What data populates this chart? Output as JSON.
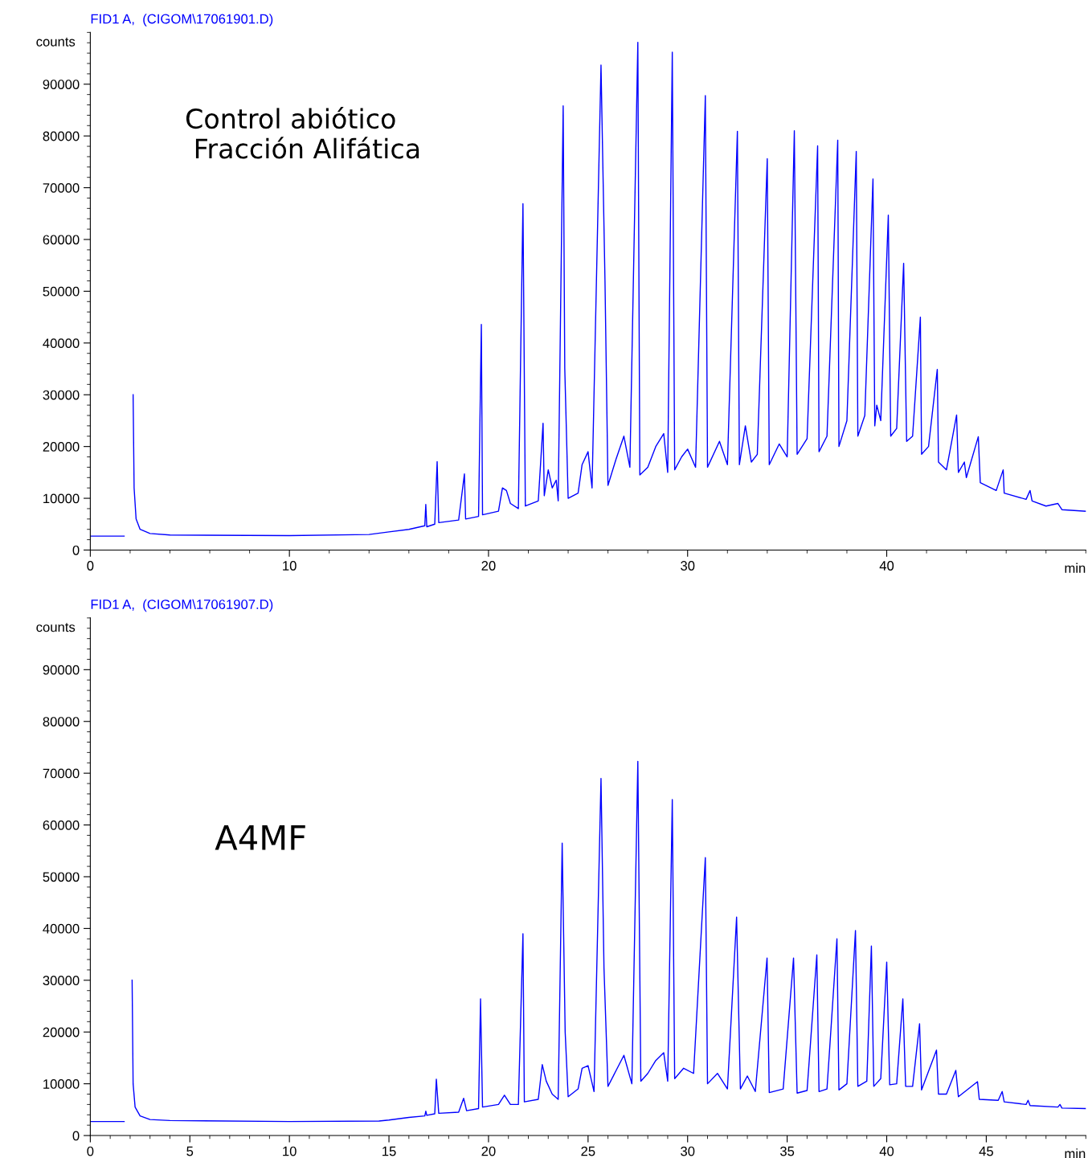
{
  "chart_data": [
    {
      "type": "line",
      "title": "FID1 A,  (CIGOM\\17061901.D)",
      "xlabel": "min",
      "ylabel": "counts",
      "annotations": [
        "Control abiótico\n Fracción Alifática"
      ],
      "xlim": [
        0,
        50
      ],
      "xticks": [
        0,
        10,
        20,
        30,
        40
      ],
      "ylim": [
        0,
        100000
      ],
      "yticks": [
        0,
        10000,
        20000,
        30000,
        40000,
        50000,
        60000,
        70000,
        80000,
        90000
      ],
      "grid": false,
      "legend": false,
      "marker": "none",
      "line_style": "solid",
      "series": [
        {
          "color": "#0000ff",
          "x": [
            0,
            1.7,
            1.72,
            2.1,
            2.15,
            2.2,
            2.3,
            2.5,
            3,
            4,
            10,
            14,
            15,
            16,
            16.8,
            16.85,
            16.9,
            17.3,
            17.42,
            17.5,
            18.5,
            18.79,
            18.85,
            19.5,
            19.64,
            19.7,
            20.5,
            20.7,
            20.9,
            21.1,
            21.5,
            21.73,
            21.85,
            22.5,
            22.74,
            22.8,
            23,
            23.2,
            23.4,
            23.5,
            23.75,
            23.83,
            24,
            24.5,
            24.7,
            25,
            25.2,
            25.65,
            25.85,
            26,
            26.4,
            26.8,
            27.1,
            27.5,
            27.6,
            28,
            28.4,
            28.8,
            29,
            29.23,
            29.35,
            29.7,
            30,
            30.4,
            30.89,
            31,
            31.6,
            32,
            32.5,
            32.6,
            32.9,
            33.2,
            33.5,
            34,
            34.1,
            34.6,
            35,
            35.36,
            35.5,
            36,
            36.53,
            36.6,
            37,
            37.54,
            37.6,
            38,
            38.47,
            38.55,
            38.9,
            39.31,
            39.4,
            39.5,
            39.7,
            40.08,
            40.2,
            40.5,
            40.85,
            41,
            41.3,
            41.69,
            41.75,
            42.1,
            42.54,
            42.6,
            43,
            43.51,
            43.6,
            43.9,
            44,
            44.6,
            44.7,
            45.5,
            45.85,
            45.9,
            47,
            47.2,
            47.3,
            48,
            48.6,
            48.8,
            50
          ],
          "values": [
            2700,
            2700,
            null,
            null,
            30000,
            12000,
            6000,
            4000,
            3200,
            2900,
            2800,
            3000,
            3500,
            4000,
            4700,
            8800,
            4500,
            5000,
            17100,
            5300,
            5800,
            14700,
            6000,
            6500,
            43600,
            6800,
            7500,
            12000,
            11500,
            9000,
            8000,
            66900,
            8500,
            9500,
            24500,
            10500,
            15500,
            12000,
            13500,
            9500,
            85800,
            35100,
            10000,
            11000,
            16500,
            19000,
            12000,
            93700,
            52000,
            12500,
            17500,
            22000,
            16000,
            98100,
            14500,
            16000,
            20000,
            22500,
            15000,
            96200,
            15500,
            18000,
            19500,
            16000,
            87800,
            16000,
            21000,
            16500,
            80900,
            16500,
            24000,
            17000,
            18500,
            75600,
            16500,
            20500,
            18000,
            81000,
            18500,
            21500,
            78100,
            19000,
            22000,
            79200,
            20000,
            25000,
            77000,
            22000,
            26000,
            71700,
            24000,
            28000,
            25000,
            64700,
            22000,
            23500,
            55400,
            21000,
            22000,
            45000,
            18500,
            20000,
            34900,
            17000,
            15500,
            26100,
            15000,
            17000,
            14000,
            21900,
            13000,
            11500,
            15500,
            11000,
            9800,
            11500,
            9500,
            8500,
            9000,
            7800,
            7500
          ]
        }
      ]
    },
    {
      "type": "line",
      "title": "FID1 A,  (CIGOM\\17061907.D)",
      "xlabel": "min",
      "ylabel": "counts",
      "annotations": [
        "A4MF"
      ],
      "xlim": [
        0,
        50
      ],
      "xticks": [
        0,
        5,
        10,
        15,
        20,
        25,
        30,
        35,
        40,
        45
      ],
      "ylim": [
        0,
        100000
      ],
      "yticks": [
        0,
        10000,
        20000,
        30000,
        40000,
        50000,
        60000,
        70000,
        80000,
        90000
      ],
      "grid": false,
      "legend": false,
      "marker": "none",
      "line_style": "solid",
      "series": [
        {
          "color": "#0000ff",
          "x": [
            0,
            1.7,
            1.72,
            2.05,
            2.1,
            2.15,
            2.25,
            2.5,
            3,
            4,
            10,
            14.5,
            15,
            16,
            16.8,
            16.85,
            16.9,
            17.3,
            17.38,
            17.5,
            18.5,
            18.75,
            18.9,
            19.5,
            19.6,
            19.7,
            20.5,
            20.8,
            21.1,
            21.5,
            21.73,
            21.8,
            22.5,
            22.7,
            22.9,
            23.2,
            23.5,
            23.7,
            23.85,
            24,
            24.5,
            24.7,
            25,
            25.3,
            25.65,
            25.8,
            26,
            26.4,
            26.8,
            27.2,
            27.5,
            27.65,
            28,
            28.4,
            28.8,
            29,
            29.23,
            29.35,
            29.8,
            30.3,
            30.89,
            31,
            31.5,
            32,
            32.46,
            32.65,
            33,
            33.4,
            33.99,
            34.1,
            34.8,
            35.32,
            35.5,
            36,
            36.49,
            36.6,
            37,
            37.5,
            37.6,
            38,
            38.43,
            38.55,
            39,
            39.23,
            39.35,
            39.7,
            40,
            40.15,
            40.5,
            40.81,
            40.95,
            41.3,
            41.65,
            41.75,
            42.5,
            42.6,
            43,
            43.47,
            43.6,
            44.56,
            44.65,
            45.6,
            45.8,
            45.9,
            47,
            47.1,
            47.2,
            48.6,
            48.7,
            48.8,
            50
          ],
          "values": [
            2700,
            2700,
            null,
            null,
            30000,
            10000,
            5500,
            3800,
            3100,
            2900,
            2700,
            2800,
            3000,
            3500,
            3800,
            4700,
            3900,
            4200,
            10900,
            4300,
            4500,
            7200,
            4800,
            5200,
            26400,
            5500,
            6000,
            7800,
            6000,
            6000,
            39000,
            6500,
            7000,
            13700,
            10500,
            8000,
            7000,
            56500,
            20000,
            7500,
            9000,
            13000,
            13500,
            8500,
            69000,
            32300,
            9500,
            12500,
            15500,
            10000,
            72300,
            10500,
            12000,
            14500,
            16000,
            10500,
            64900,
            11000,
            13000,
            12000,
            53700,
            10000,
            12000,
            9000,
            42200,
            9000,
            11500,
            8500,
            34300,
            8300,
            9000,
            34300,
            8200,
            8700,
            34900,
            8500,
            9000,
            38000,
            8800,
            10000,
            39600,
            9500,
            10500,
            36600,
            9500,
            11000,
            33500,
            9800,
            10000,
            26400,
            9500,
            9500,
            21600,
            8800,
            16500,
            8000,
            8000,
            12600,
            7500,
            10400,
            7000,
            6800,
            8500,
            6500,
            6000,
            6800,
            5800,
            5500,
            6000,
            5300,
            5200
          ]
        }
      ]
    }
  ]
}
